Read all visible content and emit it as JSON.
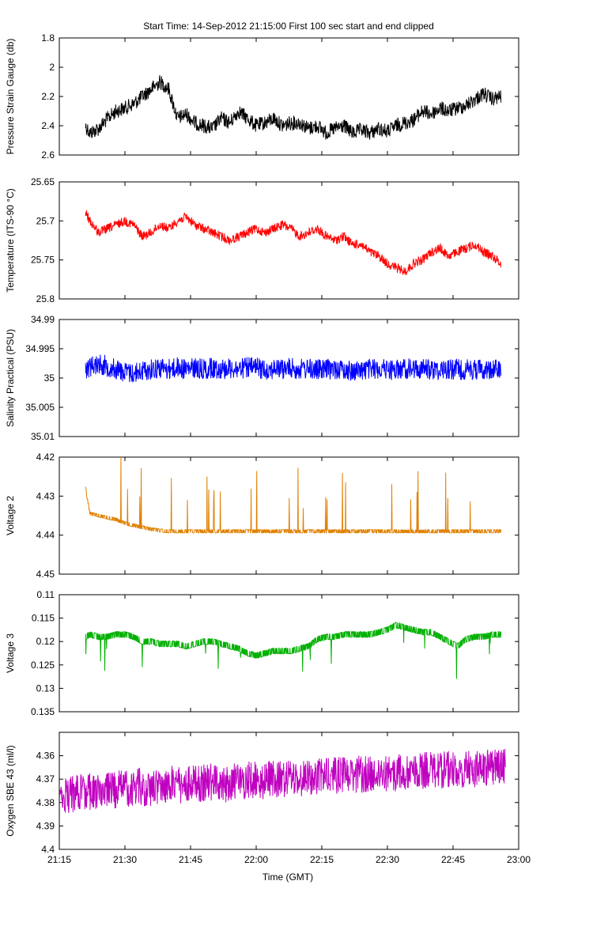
{
  "chart_data": {
    "type": "line",
    "title": "Start Time: 14-Sep-2012 21:15:00   First 100 sec start and end clipped",
    "xlabel": "Time (GMT)",
    "x_ticks": [
      "21:15",
      "21:30",
      "21:45",
      "22:00",
      "22:15",
      "22:30",
      "22:45",
      "23:00"
    ],
    "x_range_minutes": [
      0,
      105
    ],
    "grid": false,
    "legend": "none",
    "panels": [
      {
        "ylabel": "Pressure Strain Gauge (db)",
        "ylim": [
          2.6,
          1.8
        ],
        "y_ticks": [
          1.8,
          2,
          2.2,
          2.4,
          2.6
        ],
        "inverted": true,
        "color": "#000000",
        "x_minutes": [
          6,
          7,
          9,
          11,
          13,
          15,
          17,
          19,
          21,
          23,
          25,
          27,
          29,
          31,
          33,
          35,
          37,
          39,
          41,
          43,
          45,
          47,
          49,
          51,
          53,
          55,
          57,
          59,
          61,
          63,
          65,
          67,
          69,
          71,
          73,
          75,
          77,
          79,
          81,
          83,
          85,
          87,
          89,
          91,
          93,
          95,
          97,
          99,
          101
        ],
        "values": [
          2.4,
          2.45,
          2.42,
          2.35,
          2.3,
          2.28,
          2.25,
          2.2,
          2.15,
          2.1,
          2.15,
          2.35,
          2.32,
          2.38,
          2.4,
          2.42,
          2.35,
          2.38,
          2.3,
          2.35,
          2.4,
          2.38,
          2.35,
          2.4,
          2.38,
          2.38,
          2.42,
          2.4,
          2.45,
          2.42,
          2.4,
          2.45,
          2.43,
          2.45,
          2.42,
          2.44,
          2.4,
          2.38,
          2.36,
          2.3,
          2.32,
          2.28,
          2.3,
          2.28,
          2.26,
          2.22,
          2.18,
          2.22,
          2.2
        ]
      },
      {
        "ylabel": "Temperature (ITS-90 °C)",
        "ylim": [
          25.8,
          25.65
        ],
        "y_ticks": [
          25.65,
          25.7,
          25.75,
          25.8
        ],
        "inverted": true,
        "color": "#ff0000",
        "x_minutes": [
          6,
          7,
          9,
          11,
          13,
          15,
          17,
          19,
          21,
          23,
          25,
          27,
          29,
          31,
          33,
          35,
          37,
          39,
          41,
          43,
          45,
          47,
          49,
          51,
          53,
          55,
          57,
          59,
          61,
          63,
          65,
          67,
          69,
          71,
          73,
          75,
          77,
          79,
          81,
          83,
          85,
          87,
          89,
          91,
          93,
          95,
          97,
          99,
          101
        ],
        "values": [
          25.69,
          25.7,
          25.715,
          25.71,
          25.705,
          25.7,
          25.705,
          25.72,
          25.715,
          25.705,
          25.71,
          25.7,
          25.695,
          25.705,
          25.71,
          25.715,
          25.72,
          25.725,
          25.72,
          25.715,
          25.71,
          25.715,
          25.71,
          25.705,
          25.71,
          25.72,
          25.715,
          25.71,
          25.72,
          25.725,
          25.72,
          25.73,
          25.73,
          25.74,
          25.745,
          25.755,
          25.76,
          25.765,
          25.755,
          25.75,
          25.74,
          25.735,
          25.745,
          25.74,
          25.735,
          25.73,
          25.74,
          25.745,
          25.755
        ]
      },
      {
        "ylabel": "Salinity Practical (PSU)",
        "ylim": [
          35.01,
          34.99
        ],
        "y_ticks": [
          34.99,
          34.995,
          35,
          35.005,
          35.01
        ],
        "inverted": true,
        "color": "#0000ff",
        "x_minutes": [
          6,
          7,
          9,
          11,
          13,
          15,
          17,
          19,
          21,
          23,
          25,
          27,
          29,
          31,
          33,
          35,
          37,
          39,
          41,
          43,
          45,
          47,
          49,
          51,
          53,
          55,
          57,
          59,
          61,
          63,
          65,
          67,
          69,
          71,
          73,
          75,
          77,
          79,
          81,
          83,
          85,
          87,
          89,
          91,
          93,
          95,
          97,
          99,
          101
        ],
        "values": [
          34.9985,
          34.998,
          34.9975,
          34.998,
          34.9985,
          34.999,
          34.9992,
          34.9988,
          34.9985,
          34.9982,
          34.9985,
          34.9982,
          34.9985,
          34.9983,
          34.9985,
          34.9983,
          34.9984,
          34.9983,
          34.9985,
          34.9982,
          34.9983,
          34.9985,
          34.9984,
          34.9985,
          34.9983,
          34.9985,
          34.9984,
          34.9986,
          34.9985,
          34.9984,
          34.9986,
          34.9988,
          34.9987,
          34.9985,
          34.9984,
          34.9985,
          34.9986,
          34.9984,
          34.9985,
          34.9984,
          34.9986,
          34.9985,
          34.9984,
          34.9985,
          34.9986,
          34.9985,
          34.9985,
          34.9986,
          34.9985
        ]
      },
      {
        "ylabel": "Voltage 2",
        "ylim": [
          4.45,
          4.42
        ],
        "y_ticks": [
          4.42,
          4.43,
          4.44,
          4.45
        ],
        "inverted": true,
        "color": "#e08000",
        "x_minutes": [
          6,
          7,
          9,
          11,
          13,
          15,
          17,
          19,
          21,
          23,
          25,
          27,
          29,
          31,
          33,
          35,
          37,
          39,
          41,
          43,
          45,
          47,
          49,
          51,
          53,
          55,
          57,
          59,
          61,
          63,
          65,
          67,
          69,
          71,
          73,
          75,
          77,
          79,
          81,
          83,
          85,
          87,
          89,
          91,
          93,
          95,
          97,
          99,
          101
        ],
        "values": [
          4.428,
          4.4345,
          4.435,
          4.4355,
          4.436,
          4.437,
          4.4375,
          4.438,
          4.4385,
          4.4388,
          4.439,
          4.439,
          4.439,
          4.439,
          4.439,
          4.439,
          4.439,
          4.439,
          4.439,
          4.439,
          4.439,
          4.439,
          4.439,
          4.439,
          4.439,
          4.439,
          4.439,
          4.439,
          4.439,
          4.439,
          4.439,
          4.439,
          4.439,
          4.439,
          4.439,
          4.439,
          4.439,
          4.439,
          4.439,
          4.439,
          4.439,
          4.439,
          4.439,
          4.439,
          4.439,
          4.439,
          4.439,
          4.439,
          4.439
        ]
      },
      {
        "ylabel": "Voltage 3",
        "ylim": [
          0.135,
          0.11
        ],
        "y_ticks": [
          0.11,
          0.115,
          0.12,
          0.125,
          0.13,
          0.135
        ],
        "inverted": true,
        "color": "#00b000",
        "x_minutes": [
          6,
          7,
          9,
          11,
          13,
          15,
          17,
          19,
          21,
          23,
          25,
          27,
          29,
          31,
          33,
          35,
          37,
          39,
          41,
          43,
          45,
          47,
          49,
          51,
          53,
          55,
          57,
          59,
          61,
          63,
          65,
          67,
          69,
          71,
          73,
          75,
          77,
          79,
          81,
          83,
          85,
          87,
          89,
          91,
          93,
          95,
          97,
          99,
          101
        ],
        "values": [
          0.119,
          0.1185,
          0.119,
          0.119,
          0.1185,
          0.1185,
          0.119,
          0.12,
          0.12,
          0.1205,
          0.1205,
          0.1205,
          0.121,
          0.1205,
          0.12,
          0.12,
          0.1205,
          0.121,
          0.1215,
          0.1225,
          0.123,
          0.1225,
          0.122,
          0.122,
          0.122,
          0.1215,
          0.121,
          0.1195,
          0.119,
          0.119,
          0.1185,
          0.1185,
          0.1185,
          0.1185,
          0.118,
          0.1175,
          0.1165,
          0.117,
          0.1175,
          0.118,
          0.118,
          0.119,
          0.12,
          0.121,
          0.1195,
          0.119,
          0.119,
          0.1185,
          0.1185
        ]
      },
      {
        "ylabel": "Oxygen SBE 43 (ml/l)",
        "ylim": [
          4.4,
          4.35
        ],
        "y_ticks": [
          4.36,
          4.37,
          4.38,
          4.39,
          4.4
        ],
        "inverted": true,
        "color": "#c000c0",
        "x_minutes": [
          0,
          2,
          4,
          6,
          8,
          10,
          12,
          14,
          16,
          18,
          20,
          22,
          24,
          26,
          28,
          30,
          32,
          34,
          36,
          38,
          40,
          42,
          44,
          46,
          48,
          50,
          52,
          54,
          56,
          58,
          60,
          62,
          64,
          66,
          68,
          70,
          72,
          74,
          76,
          78,
          80,
          82,
          84,
          86,
          88,
          90,
          92,
          94,
          96,
          98,
          100,
          102
        ],
        "values": [
          4.376,
          4.377,
          4.376,
          4.375,
          4.376,
          4.375,
          4.375,
          4.374,
          4.374,
          4.373,
          4.374,
          4.373,
          4.373,
          4.372,
          4.373,
          4.372,
          4.372,
          4.371,
          4.372,
          4.372,
          4.371,
          4.371,
          4.37,
          4.371,
          4.37,
          4.37,
          4.37,
          4.369,
          4.37,
          4.369,
          4.369,
          4.369,
          4.368,
          4.369,
          4.368,
          4.368,
          4.368,
          4.367,
          4.368,
          4.367,
          4.367,
          4.367,
          4.366,
          4.367,
          4.366,
          4.366,
          4.366,
          4.365,
          4.366,
          4.365,
          4.365,
          4.365
        ]
      }
    ]
  }
}
